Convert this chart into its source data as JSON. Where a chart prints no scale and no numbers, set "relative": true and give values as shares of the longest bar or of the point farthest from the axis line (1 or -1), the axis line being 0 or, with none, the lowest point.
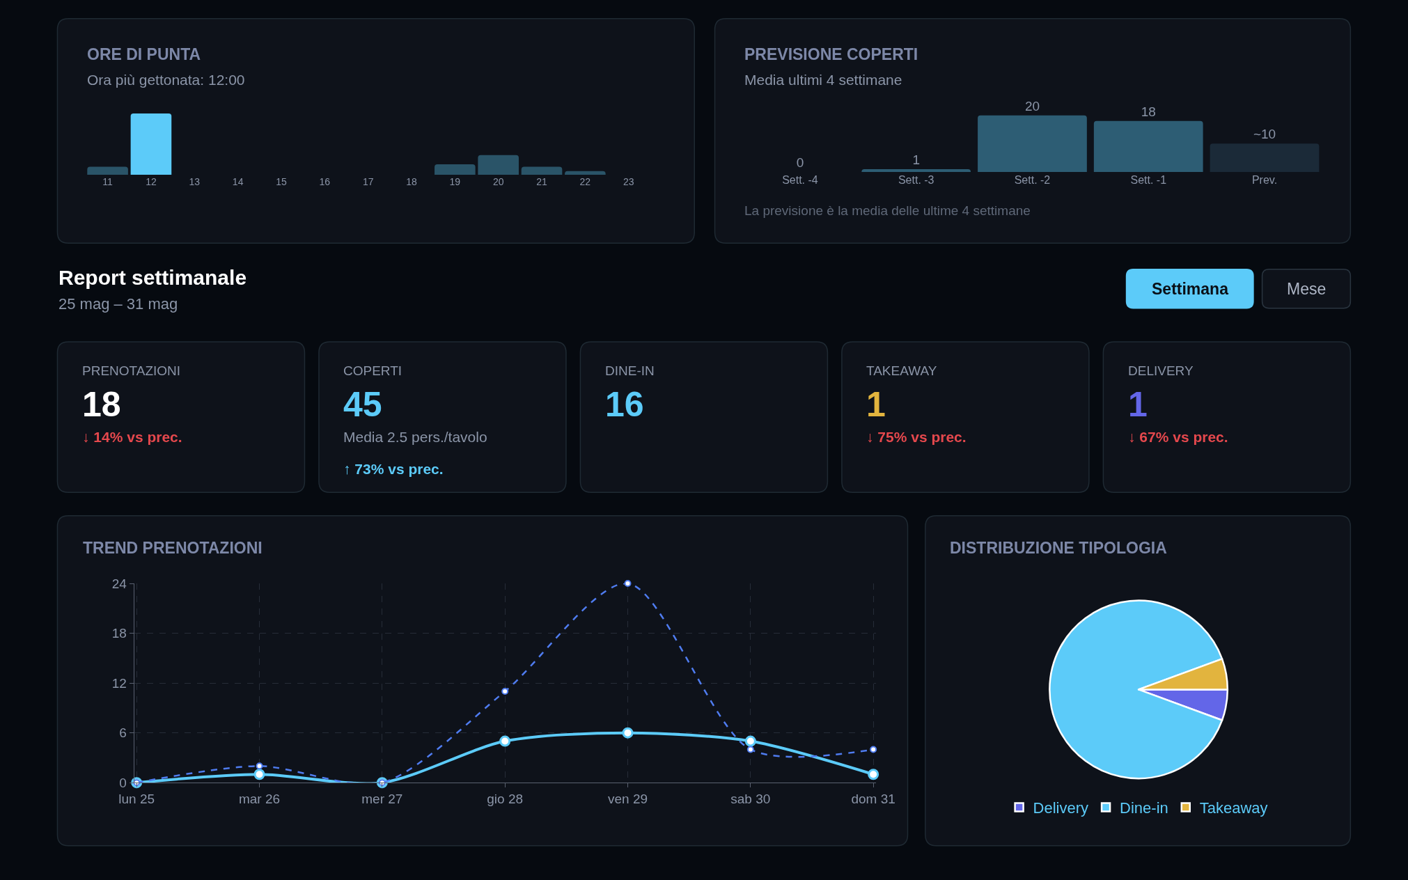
{
  "chart_data": [
    {
      "type": "bar",
      "title": "ORE DI PUNTA",
      "subtitle": "Ora più gettonata: 12:00",
      "categories": [
        "11",
        "12",
        "13",
        "14",
        "15",
        "16",
        "17",
        "18",
        "19",
        "20",
        "21",
        "22",
        "23"
      ],
      "values": [
        0.13,
        1,
        0,
        0,
        0,
        0,
        0,
        0,
        0.17,
        0.32,
        0.13,
        0.06,
        0
      ],
      "colors": [
        "#2a5468",
        "#5ccbf9",
        "#2a5468",
        "#2a5468",
        "#2a5468",
        "#2a5468",
        "#2a5468",
        "#2a5468",
        "#2a5468",
        "#2a5468",
        "#2a5468",
        "#2a5468",
        "#2a5468"
      ],
      "relative": true
    },
    {
      "type": "bar",
      "title": "PREVISIONE COPERTI",
      "subtitle": "Media ultimi 4 settimane",
      "categories": [
        "Sett. -4",
        "Sett. -3",
        "Sett. -2",
        "Sett. -1",
        "Prev."
      ],
      "values": [
        0,
        1,
        20,
        18,
        10
      ],
      "value_labels": [
        "0",
        "1",
        "20",
        "18",
        "~10"
      ],
      "colors": [
        "#2d5d74",
        "#2d5d74",
        "#2d5d74",
        "#2d5d74",
        "#1b2a38"
      ],
      "annotations": [
        "La previsione è la media delle ultime 4 settimane"
      ]
    },
    {
      "type": "other",
      "title": "Report settimanale",
      "subtitle": "25 mag – 31 mag",
      "annotations": [
        "Settimana",
        "Mese"
      ],
      "colors": [
        "#5ccbf9",
        "#0e121a"
      ]
    },
    {
      "type": "other",
      "title": "PRENOTAZIONI",
      "annotations": [
        "18",
        "↓ 14% vs prec."
      ],
      "colors": [
        "#ffffff",
        "#e5484d"
      ]
    },
    {
      "type": "other",
      "title": "COPERTI",
      "annotations": [
        "45",
        "Media 2.5 pers./tavolo",
        "↑ 73% vs prec."
      ],
      "colors": [
        "#5ccbf9",
        "#8b95a8",
        "#5ccbf9"
      ]
    },
    {
      "type": "other",
      "title": "DINE-IN",
      "annotations": [
        "16"
      ],
      "colors": [
        "#5ccbf9"
      ]
    },
    {
      "type": "other",
      "title": "TAKEAWAY",
      "annotations": [
        "1",
        "↓ 75% vs prec."
      ],
      "colors": [
        "#e2b43e",
        "#e5484d"
      ]
    },
    {
      "type": "other",
      "title": "DELIVERY",
      "annotations": [
        "1",
        "↓ 67% vs prec."
      ],
      "colors": [
        "#6366e8",
        "#e5484d"
      ]
    },
    {
      "type": "line",
      "title": "TREND PRENOTAZIONI",
      "categories": [
        "lun 25",
        "mar 26",
        "mer 27",
        "gio 28",
        "ven 29",
        "sab 30",
        "dom 31"
      ],
      "series": [
        {
          "color": "#5ccbf9",
          "values": [
            0,
            1,
            0,
            5,
            6,
            5,
            1
          ],
          "line_style": "solid"
        },
        {
          "color": "#4f7cf0",
          "values": [
            0,
            2,
            0,
            11,
            24,
            4,
            4
          ],
          "line_style": "dashed"
        }
      ],
      "ylim": [
        0,
        24
      ],
      "yticks": [
        0,
        6,
        12,
        18,
        24
      ],
      "grid": true,
      "marker": "circle"
    },
    {
      "type": "pie",
      "title": "DISTRIBUZIONE TIPOLOGIA",
      "categories": [
        "Delivery",
        "Dine-in",
        "Takeaway"
      ],
      "values": [
        5.6,
        88.8,
        5.6
      ],
      "colors": [
        "#6366e8",
        "#5ccbf9",
        "#e2b43e"
      ],
      "legend": "bottom"
    }
  ]
}
